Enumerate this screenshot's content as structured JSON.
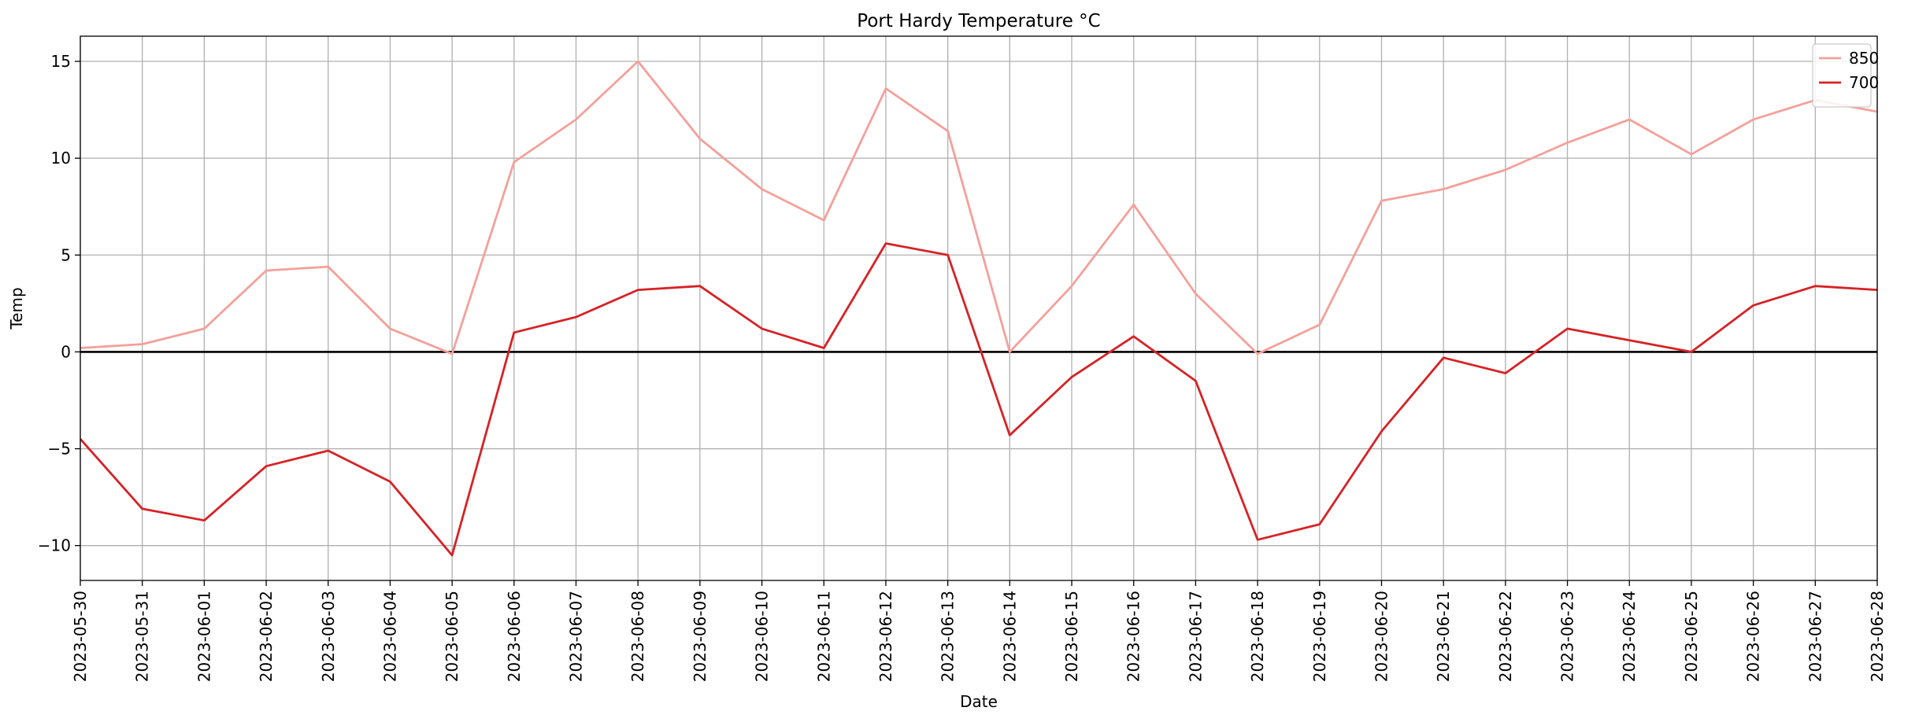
{
  "chart_data": {
    "type": "line",
    "title": "Port Hardy Temperature °C",
    "xlabel": "Date",
    "ylabel": "Temp",
    "x": [
      "2023-05-30",
      "2023-05-31",
      "2023-06-01",
      "2023-06-02",
      "2023-06-03",
      "2023-06-04",
      "2023-06-05",
      "2023-06-06",
      "2023-06-07",
      "2023-06-08",
      "2023-06-09",
      "2023-06-10",
      "2023-06-11",
      "2023-06-12",
      "2023-06-13",
      "2023-06-14",
      "2023-06-15",
      "2023-06-16",
      "2023-06-17",
      "2023-06-18",
      "2023-06-19",
      "2023-06-20",
      "2023-06-21",
      "2023-06-22",
      "2023-06-23",
      "2023-06-24",
      "2023-06-25",
      "2023-06-26",
      "2023-06-27",
      "2023-06-28"
    ],
    "ylim": [
      -11.8,
      16.3
    ],
    "yticks": [
      -10,
      -5,
      0,
      5,
      10,
      15
    ],
    "grid": true,
    "reference_line": 0,
    "legend_position": "top-right",
    "series": [
      {
        "name": "850",
        "color": "#f4a09a",
        "values": [
          0.2,
          0.4,
          1.2,
          4.2,
          4.4,
          1.2,
          -0.1,
          9.8,
          12.0,
          15.0,
          11.0,
          8.4,
          6.8,
          13.6,
          11.4,
          0.0,
          3.4,
          7.6,
          3.0,
          -0.1,
          1.4,
          7.8,
          8.4,
          9.4,
          10.8,
          12.0,
          10.2,
          12.0,
          13.0,
          12.4
        ]
      },
      {
        "name": "700",
        "color": "#d62226",
        "values": [
          -4.5,
          -8.1,
          -8.7,
          -5.9,
          -5.1,
          -6.7,
          -10.5,
          1.0,
          1.8,
          3.2,
          3.4,
          1.2,
          0.2,
          5.6,
          5.0,
          -4.3,
          -1.3,
          0.8,
          -1.5,
          -9.7,
          -8.9,
          -4.1,
          -0.3,
          -1.1,
          1.2,
          0.6,
          0.0,
          2.4,
          3.4,
          3.2
        ]
      }
    ]
  }
}
